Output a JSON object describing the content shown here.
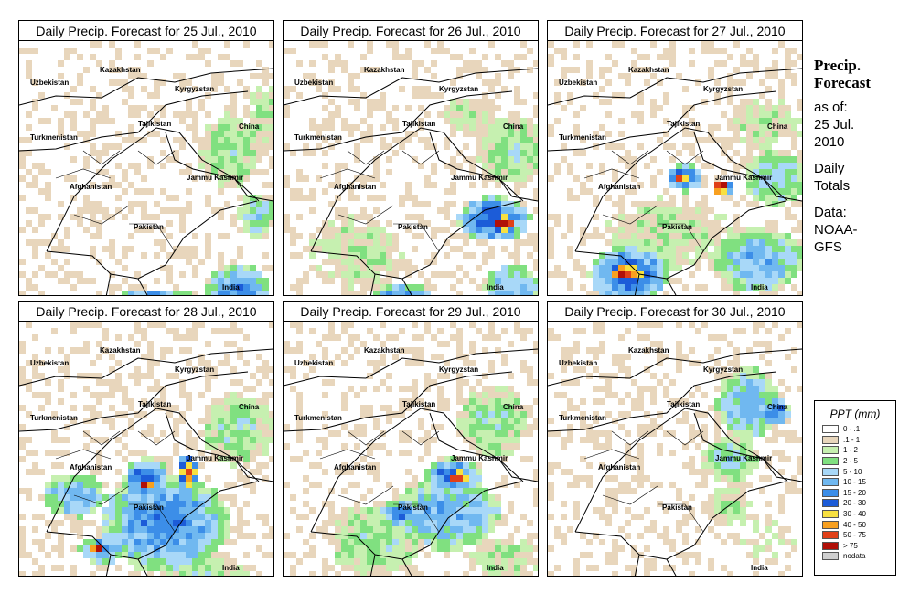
{
  "panels": [
    {
      "title": "Daily Precip. Forecast for  25 Jul., 2010"
    },
    {
      "title": "Daily Precip. Forecast for  26 Jul., 2010"
    },
    {
      "title": "Daily Precip. Forecast for  27 Jul., 2010"
    },
    {
      "title": "Daily Precip. Forecast for  28 Jul., 2010"
    },
    {
      "title": "Daily Precip. Forecast for  29 Jul., 2010"
    },
    {
      "title": "Daily Precip. Forecast for  30 Jul., 2010"
    }
  ],
  "map_labels": {
    "kazakhstan": "Kazakhstan",
    "uzbekistan": "Uzbekistan",
    "kyrgyzstan": "Kyrgyzstan",
    "tajikistan": "Tajikistan",
    "turkmenistan": "Turkmenistan",
    "china": "China",
    "afghanistan": "Afghanistan",
    "jammu_kashmir": "Jammu Kashmir",
    "pakistan": "Pakistan",
    "india": "India"
  },
  "info": {
    "heading_line1": "Precip.",
    "heading_line2": "Forecast",
    "asof_line1": "as of:",
    "asof_line2": "25 Jul.",
    "asof_line3": "2010",
    "daily_line1": "Daily",
    "daily_line2": "Totals",
    "data_line1": "Data:",
    "data_line2": "NOAA-",
    "data_line3": "GFS"
  },
  "legend": {
    "title": "PPT (mm)",
    "items": [
      {
        "label": "0 - .1",
        "color": "#ffffff"
      },
      {
        "label": ".1 - 1",
        "color": "#e8d6bc"
      },
      {
        "label": "1 - 2",
        "color": "#c6f0b0"
      },
      {
        "label": "2 - 5",
        "color": "#80e080"
      },
      {
        "label": "5 - 10",
        "color": "#a8d8f8"
      },
      {
        "label": "10 - 15",
        "color": "#70b8f0"
      },
      {
        "label": "15 - 20",
        "color": "#3c8ee8"
      },
      {
        "label": "20 - 30",
        "color": "#1c5cd8"
      },
      {
        "label": "30 - 40",
        "color": "#f8e040"
      },
      {
        "label": "40 - 50",
        "color": "#f8a020"
      },
      {
        "label": "50 - 75",
        "color": "#e04018"
      },
      {
        "label": "> 75",
        "color": "#b01008"
      },
      {
        "label": "nodata",
        "color": "#d0d0d0"
      }
    ]
  }
}
